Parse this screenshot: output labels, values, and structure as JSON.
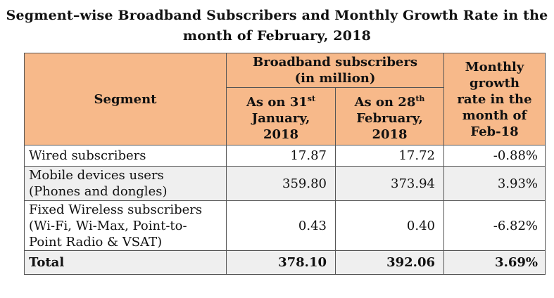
{
  "title_line1": "Segment–wise Broadband Subscribers and Monthly Growth Rate in the",
  "title_line2": "month of February, 2018",
  "header": {
    "segment": "Segment",
    "group_line1": "Broadband subscribers",
    "group_line2": "(in million)",
    "jan_line1": "As on 31",
    "jan_sup": "st",
    "jan_line2": "January,",
    "jan_line3": "2018",
    "feb_line1": "As on 28",
    "feb_sup": "th",
    "feb_line2": "February,",
    "feb_line3": "2018",
    "growth_line1": "Monthly",
    "growth_line2": "growth",
    "growth_line3": "rate in the",
    "growth_line4": "month of",
    "growth_line5": "Feb-18"
  },
  "rows": [
    {
      "segment_line1": "Wired subscribers",
      "segment_line2": "",
      "segment_line3": "",
      "jan": "17.87",
      "feb": "17.72",
      "growth": "-0.88%"
    },
    {
      "segment_line1": "Mobile devices users",
      "segment_line2": "(Phones and dongles)",
      "segment_line3": "",
      "jan": "359.80",
      "feb": "373.94",
      "growth": "3.93%"
    },
    {
      "segment_line1": "Fixed Wireless subscribers",
      "segment_line2": "(Wi-Fi, Wi-Max, Point-to-",
      "segment_line3": "Point Radio & VSAT)",
      "jan": "0.43",
      "feb": "0.40",
      "growth": "-6.82%"
    }
  ],
  "total": {
    "label": "Total",
    "jan": "378.10",
    "feb": "392.06",
    "growth": "3.69%"
  },
  "colors": {
    "header_bg": "#f7b98a",
    "shade_bg": "#efefef"
  }
}
